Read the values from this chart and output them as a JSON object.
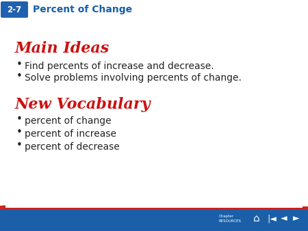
{
  "header_text": "Percent of Change",
  "lesson_label": "2-7",
  "header_bg": "#F0DC3C",
  "header_text_color": "#1a5fa8",
  "lesson_bg": "#2060b0",
  "lesson_text_color": "#ffffff",
  "border_color_red": "#cc2222",
  "border_color_blue": "#2060b0",
  "main_bg": "#ffffff",
  "main_ideas_title": "Main Ideas",
  "main_ideas_color": "#cc1111",
  "main_ideas_bullets": [
    "Find percents of increase and decrease.",
    "Solve problems involving percents of change."
  ],
  "vocab_title": "New Vocabulary",
  "vocab_color": "#cc1111",
  "vocab_bullets": [
    "percent of change",
    "percent of increase",
    "percent of decrease"
  ],
  "footer_bg": "#1a5fa8",
  "body_text_color": "#222222",
  "body_fontsize": 10.0,
  "title_fontsize": 16,
  "header_fontsize": 10,
  "lesson_fontsize": 8.5
}
